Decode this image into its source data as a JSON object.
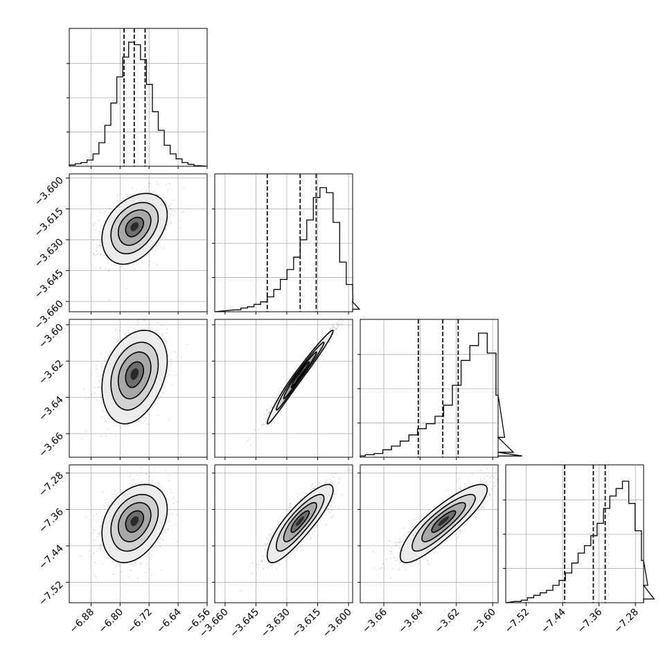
{
  "chart_data": {
    "type": "corner",
    "grid": true,
    "params": [
      {
        "range": [
          -6.94,
          -6.56
        ],
        "ticks": [
          -6.88,
          -6.8,
          -6.72,
          -6.64,
          -6.56
        ],
        "tick_labels": [
          "−6.88",
          "−6.80",
          "−6.72",
          "−6.64",
          "−6.56"
        ],
        "mean": -6.76,
        "sd": 0.045,
        "quantiles": [
          -6.789,
          -6.761,
          -6.731
        ],
        "hist": [
          1,
          2,
          3,
          5,
          10,
          19,
          33,
          51,
          72,
          88,
          100,
          98,
          86,
          66,
          44,
          29,
          17,
          10,
          6,
          3,
          1.5,
          0.5
        ]
      },
      {
        "range": [
          -3.665,
          -3.598
        ],
        "ticks": [
          -3.66,
          -3.645,
          -3.63,
          -3.615,
          -3.6
        ],
        "tick_labels": [
          "−3.660",
          "−3.645",
          "−3.630",
          "−3.615",
          "−3.600"
        ],
        "mean": -3.6235,
        "sd": 0.008,
        "quantiles": [
          -3.6395,
          -3.6235,
          -3.6157
        ],
        "hist": [
          1.5,
          3,
          4,
          6,
          8,
          12,
          18,
          26,
          34,
          44,
          58,
          74,
          92,
          100,
          96,
          72,
          40,
          22,
          8,
          2
        ]
      },
      {
        "range": [
          -3.673,
          -3.597
        ],
        "ticks": [
          -3.66,
          -3.64,
          -3.62,
          -3.6
        ],
        "tick_labels": [
          "−3.66",
          "−3.64",
          "−3.62",
          "−3.60"
        ],
        "mean": -3.627,
        "sd": 0.012,
        "quantiles": [
          -3.641,
          -3.6275,
          -3.619
        ],
        "hist": [
          1,
          2,
          3,
          6,
          9,
          13,
          18,
          23,
          27,
          33,
          42,
          58,
          78,
          90,
          100,
          84,
          50,
          16,
          4,
          1
        ]
      },
      {
        "range": [
          -7.565,
          -7.262
        ],
        "ticks": [
          -7.52,
          -7.44,
          -7.36,
          -7.28
        ],
        "tick_labels": [
          "−7.52",
          "−7.44",
          "−7.36",
          "−7.28"
        ],
        "mean": -7.385,
        "sd": 0.04,
        "quantiles": [
          -7.4355,
          -7.3725,
          -7.3464
        ],
        "hist": [
          1,
          2,
          4,
          6,
          8,
          10,
          14,
          18,
          24,
          32,
          40,
          46,
          54,
          64,
          76,
          86,
          92,
          98,
          80,
          58,
          34,
          14,
          3
        ]
      }
    ],
    "pairs": [
      {
        "x": 0,
        "y": 1,
        "corr": 0.35
      },
      {
        "x": 0,
        "y": 2,
        "corr": 0.3
      },
      {
        "x": 1,
        "y": 2,
        "corr": 0.985
      },
      {
        "x": 0,
        "y": 3,
        "corr": 0.32
      },
      {
        "x": 1,
        "y": 3,
        "corr": 0.85
      },
      {
        "x": 2,
        "y": 3,
        "corr": 0.86
      }
    ]
  }
}
